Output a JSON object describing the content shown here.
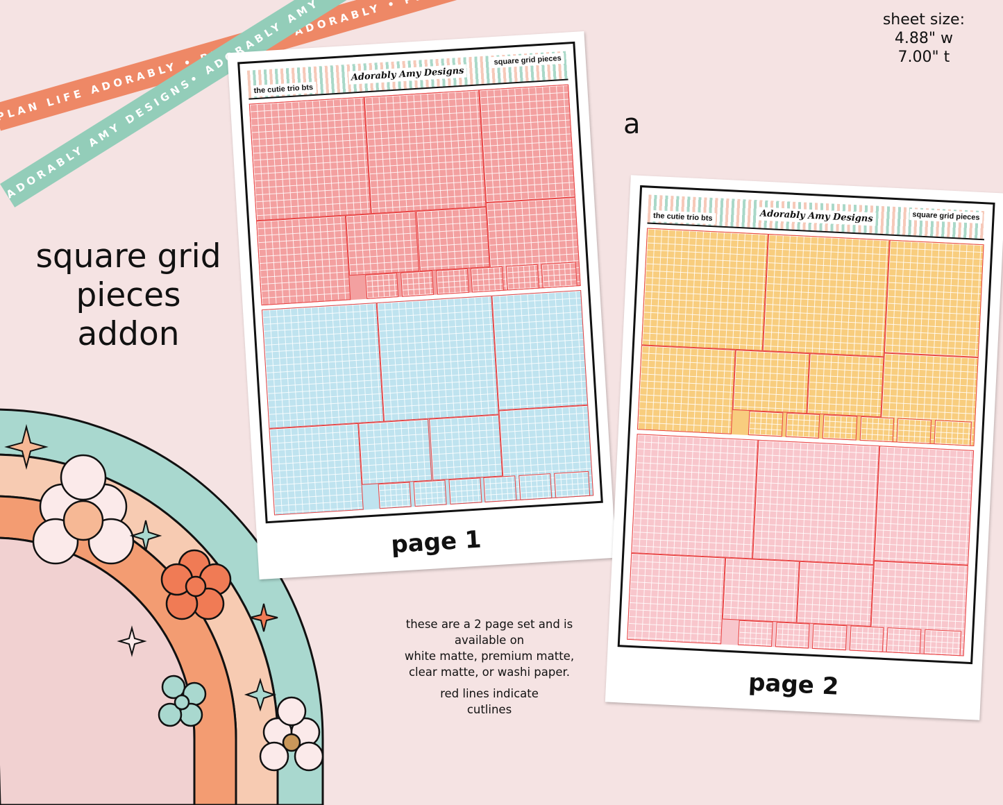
{
  "ribbons": {
    "orange_text": "PLAN LIFE ADORABLY • PLAN LIFE ADORABLY • PLAN LIFE ADORABLY",
    "teal_text": "ADORABLY AMY DESIGNS• ADORABLY AMY DESIGNS• ADORABLY AMY DESIGNS"
  },
  "sheet_size": {
    "label": "sheet size:",
    "width": "4.88\" w",
    "height": "7.00\" t"
  },
  "title": {
    "line1": "square grid",
    "line2": "pieces",
    "line3": "addon"
  },
  "variant_label": "a",
  "info": {
    "line1": "these are a 2 page set and is",
    "line2": "available on",
    "line3": "white matte, premium matte,",
    "line4": "clear matte, or washi paper.",
    "line5": "red lines indicate",
    "line6": "cutlines"
  },
  "pages": [
    {
      "label": "page 1",
      "header_left": "the cutie trio bts",
      "header_right": "square grid pieces",
      "logo": "Adorably Amy Designs",
      "top_color": "#f3a0a0",
      "bottom_color": "#bfe3ef"
    },
    {
      "label": "page 2",
      "header_left": "the cutie trio bts",
      "header_right": "square grid pieces",
      "logo": "Adorably Amy Designs",
      "top_color": "#f8cd7e",
      "bottom_color": "#f8c6cc"
    }
  ],
  "colors": {
    "background": "#f5e3e3",
    "cutline": "#e84040",
    "orange": "#ee8866",
    "teal": "#93cdb9"
  }
}
